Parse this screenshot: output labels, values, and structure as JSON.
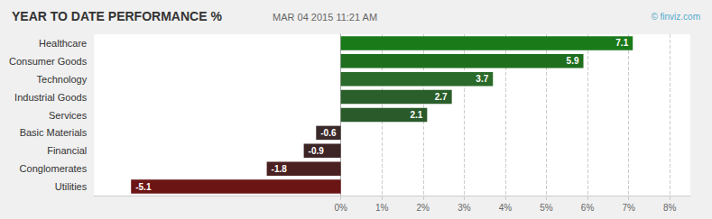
{
  "chart_data": {
    "type": "bar",
    "orientation": "horizontal",
    "title": "YEAR TO DATE PERFORMANCE %",
    "subtitle": "MAR 04 2015 11:21 AM",
    "annotations": [
      "© finviz.com"
    ],
    "categories": [
      "Utilities",
      "Conglomerates",
      "Financial",
      "Basic Materials",
      "Services",
      "Industrial Goods",
      "Technology",
      "Consumer Goods",
      "Healthcare"
    ],
    "values": [
      -5.1,
      -1.8,
      -0.9,
      -0.6,
      2.1,
      2.7,
      3.7,
      5.9,
      7.1
    ],
    "colors": [
      "#6b1515",
      "#4a2020",
      "#3d2525",
      "#3a2a2a",
      "#2a5a2a",
      "#2a5e2a",
      "#2a6a2a",
      "#1e6e1e",
      "#1a7a1a"
    ],
    "xlim": [
      -6.0,
      8.5
    ],
    "xticks": [
      {
        "value": 0,
        "label": "0%"
      },
      {
        "value": 1,
        "label": "1%"
      },
      {
        "value": 2,
        "label": "2%"
      },
      {
        "value": 3,
        "label": "3%"
      },
      {
        "value": 4,
        "label": "4%"
      },
      {
        "value": 5,
        "label": "5%"
      },
      {
        "value": 6,
        "label": "6%"
      },
      {
        "value": 7,
        "label": "7%"
      },
      {
        "value": 8,
        "label": "8%"
      }
    ],
    "grid": true,
    "data_labels": true
  }
}
